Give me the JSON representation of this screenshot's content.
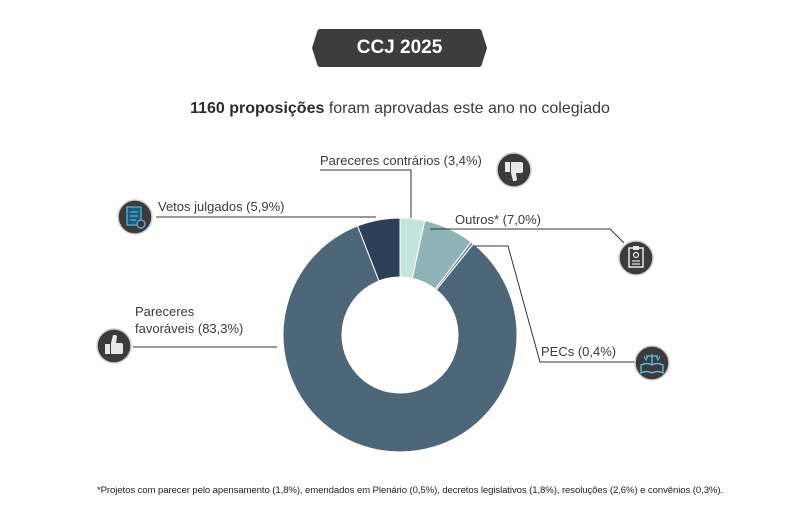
{
  "header": {
    "badge": "CCJ 2025",
    "subtitle_bold": "1160 proposições",
    "subtitle_rest": " foram aprovadas este ano no colegiado"
  },
  "chart_data": {
    "type": "pie",
    "donut": true,
    "slices": [
      {
        "label": "Pareceres contrários (3,4%)",
        "value": 3.4,
        "color": "#c4e5dd",
        "icon": "thumbs-down-icon"
      },
      {
        "label": "Outros* (7,0%)",
        "value": 7.0,
        "color": "#8fb3b7",
        "icon": "document-list-icon"
      },
      {
        "label": "PECs (0,4%)",
        "value": 0.4,
        "color": "#6c8794",
        "icon": "law-book-scales-icon"
      },
      {
        "label": "Pareceres favoráveis (83,3%)",
        "value": 83.3,
        "color": "#4e6778",
        "icon": "thumbs-up-icon"
      },
      {
        "label": "Vetos julgados (5,9%)",
        "value": 5.9,
        "color": "#2e4058",
        "icon": "veto-document-icon"
      }
    ],
    "labels_multiline": {
      "favoraveis_line1": "Pareceres",
      "favoraveis_line2": "favoráveis (83,3%)"
    }
  },
  "footnote": "*Projetos com parecer pelo apensamento (1,8%), emendados em Plenário (0,5%), decretos legislativos (1,8%), resoluções (2,6%) e convênios (0,3%).",
  "colors": {
    "badge_bg": "#3d3d3d",
    "icon_circle": "#3b3b3b",
    "icon_accent": "#5bb8e0"
  }
}
